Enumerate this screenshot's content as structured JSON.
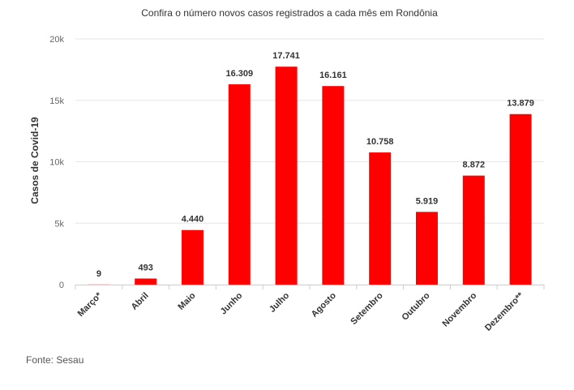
{
  "chart_data": {
    "type": "bar",
    "title": "Confira o número novos casos registrados a cada mês em Rondônia",
    "ylabel": "Casos de Covid-19",
    "xlabel": "",
    "categories": [
      "Março*",
      "Abril",
      "Maio",
      "Junho",
      "Julho",
      "Agosto",
      "Setembro",
      "Outubro",
      "Novembro",
      "Dezembro**"
    ],
    "values": [
      9,
      493,
      4440,
      16309,
      17741,
      16161,
      10758,
      5919,
      8872,
      13879
    ],
    "value_labels": [
      "9",
      "493",
      "4.440",
      "16.309",
      "17.741",
      "16.161",
      "10.758",
      "5.919",
      "8.872",
      "13.879"
    ],
    "yticks": [
      0,
      5000,
      10000,
      15000,
      20000
    ],
    "ytick_labels": [
      "0",
      "5k",
      "10k",
      "15k",
      "20k"
    ],
    "ylim": [
      0,
      20000
    ],
    "grid": true,
    "legend": "none",
    "bar_color": "#ff0000"
  },
  "source": "Fonte: Sesau"
}
